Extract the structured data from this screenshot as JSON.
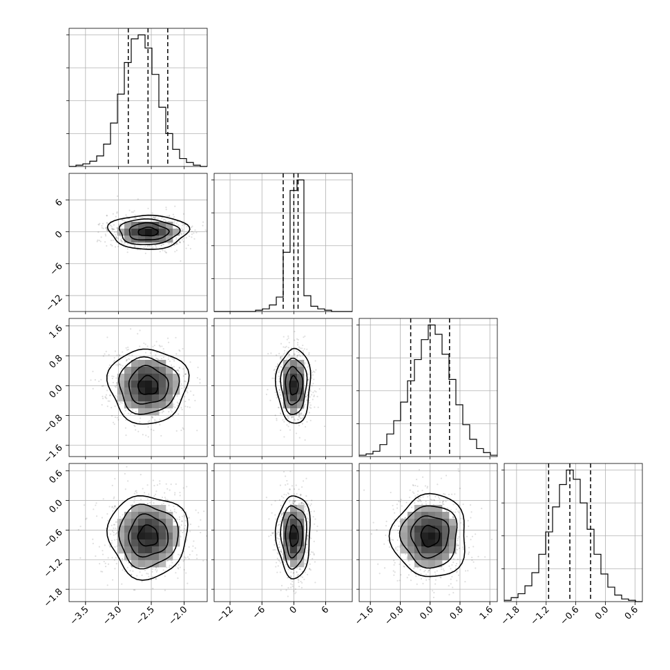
{
  "chart_data": {
    "type": "corner",
    "title": "",
    "grid": true,
    "parameters": [
      {
        "index": 0,
        "median": -2.55,
        "q16": -2.85,
        "q84": -2.25,
        "sd": 0.3,
        "range": [
          -3.75,
          -1.65
        ],
        "ticks": [
          -3.5,
          -3.0,
          -2.5,
          -2.0
        ],
        "tick_labels": [
          "−3.5",
          "−3.0",
          "−2.5",
          "−2.0"
        ]
      },
      {
        "index": 1,
        "median": 0.0,
        "q16": -2.0,
        "q84": 0.8,
        "sd": 1.6,
        "range": [
          -15,
          11
        ],
        "ticks": [
          -12,
          -6,
          0,
          6
        ],
        "tick_labels": [
          "−12",
          "−6",
          "0",
          "6"
        ]
      },
      {
        "index": 2,
        "median": 0.0,
        "q16": -0.52,
        "q84": 0.52,
        "sd": 0.5,
        "range": [
          -1.9,
          1.8
        ],
        "ticks": [
          -1.6,
          -0.8,
          0.0,
          0.8,
          1.6
        ],
        "tick_labels": [
          "−1.6",
          "−0.8",
          "0.0",
          "0.8",
          "1.6"
        ]
      },
      {
        "index": 3,
        "median": -0.72,
        "q16": -1.15,
        "q84": -0.3,
        "sd": 0.42,
        "range": [
          -2.05,
          0.75
        ],
        "ticks": [
          -1.8,
          -1.2,
          -0.6,
          0.0,
          0.6
        ],
        "tick_labels": [
          "−1.8",
          "−1.2",
          "−0.6",
          "0.0",
          "0.6"
        ]
      }
    ],
    "histograms": [
      {
        "param": 0,
        "bin_edges": [
          -3.75,
          -3.645,
          -3.54,
          -3.435,
          -3.33,
          -3.225,
          -3.12,
          -3.015,
          -2.91,
          -2.805,
          -2.7,
          -2.595,
          -2.49,
          -2.385,
          -2.28,
          -2.175,
          -2.07,
          -1.965,
          -1.86,
          -1.755,
          -1.65
        ],
        "counts": [
          0,
          1,
          2,
          4,
          8,
          17,
          33,
          55,
          79,
          97,
          100,
          90,
          70,
          45,
          25,
          13,
          6,
          3,
          1,
          0
        ]
      },
      {
        "param": 1,
        "bin_edges": [
          -15,
          -13.7,
          -12.4,
          -11.1,
          -9.8,
          -8.5,
          -7.2,
          -5.9,
          -4.6,
          -3.3,
          -2.0,
          -0.7,
          0.6,
          1.9,
          3.2,
          4.5,
          5.8,
          7.1,
          8.4,
          9.7,
          11
        ],
        "counts": [
          0,
          0,
          0,
          0,
          0,
          0,
          1,
          2,
          5,
          11,
          45,
          92,
          100,
          12,
          4,
          2,
          1,
          0,
          0,
          0
        ]
      },
      {
        "param": 2,
        "bin_edges": [
          -1.9,
          -1.715,
          -1.53,
          -1.345,
          -1.16,
          -0.975,
          -0.79,
          -0.605,
          -0.42,
          -0.235,
          -0.05,
          0.135,
          0.32,
          0.505,
          0.69,
          0.875,
          1.06,
          1.245,
          1.43,
          1.615,
          1.8
        ],
        "counts": [
          1,
          2,
          4,
          9,
          17,
          27,
          41,
          57,
          73,
          88,
          99,
          92,
          77,
          58,
          39,
          24,
          13,
          6,
          3,
          1
        ]
      },
      {
        "param": 3,
        "bin_edges": [
          -2.05,
          -1.91,
          -1.77,
          -1.63,
          -1.49,
          -1.35,
          -1.21,
          -1.07,
          -0.93,
          -0.79,
          -0.65,
          -0.51,
          -0.37,
          -0.23,
          -0.09,
          0.05,
          0.19,
          0.33,
          0.47,
          0.61,
          0.75
        ],
        "counts": [
          1,
          3,
          6,
          12,
          22,
          36,
          53,
          72,
          89,
          100,
          93,
          75,
          55,
          36,
          21,
          11,
          5,
          2,
          1,
          0
        ]
      }
    ],
    "pairs": [
      {
        "x_param": 0,
        "y_param": 1,
        "correlation": 0.0
      },
      {
        "x_param": 0,
        "y_param": 2,
        "correlation": 0.0
      },
      {
        "x_param": 1,
        "y_param": 2,
        "correlation": 0.0
      },
      {
        "x_param": 0,
        "y_param": 3,
        "correlation": 0.0
      },
      {
        "x_param": 1,
        "y_param": 3,
        "correlation": 0.0
      },
      {
        "x_param": 2,
        "y_param": 3,
        "correlation": 0.0
      }
    ],
    "contour_levels_sigma": [
      0.5,
      1.0,
      1.5,
      2.0
    ],
    "colors": {
      "line": "#000000",
      "density": "#000000",
      "grid": "#b0b0b0"
    }
  }
}
